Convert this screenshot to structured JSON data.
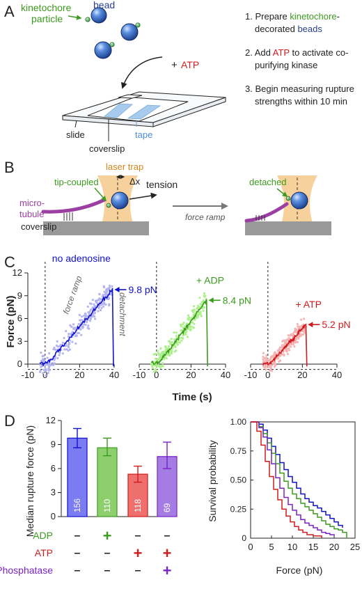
{
  "panels": {
    "a": "A",
    "b": "B",
    "c": "C",
    "d": "D"
  },
  "panel_a": {
    "label_kinetochore_line1": "kinetochore",
    "label_kinetochore_line2": "particle",
    "label_bead": "bead",
    "label_plus": "+",
    "label_atp": "ATP",
    "label_slide": "slide",
    "label_coverslip": "coverslip",
    "label_tape": "tape",
    "steps": [
      {
        "n": "1.",
        "parts": [
          "Prepare ",
          "kinetochore",
          "-"
        ],
        "line2": [
          "decorated ",
          "beads"
        ]
      },
      {
        "n": "2.",
        "parts": [
          "Add ",
          "ATP",
          " to activate co-"
        ],
        "line2": [
          "purifying kinase",
          ""
        ]
      },
      {
        "n": "3.",
        "parts": [
          "Begin measuring rupture",
          "",
          ""
        ],
        "line2": [
          "strengths within 10 min",
          ""
        ]
      }
    ]
  },
  "panel_b": {
    "laser_trap": "laser trap",
    "delta_x": "Δx",
    "tip_coupled": "tip-coupled",
    "tension": "tension",
    "micro": "micro-",
    "tubule": "tubule",
    "coverslip": "coverslip",
    "force_ramp": "force ramp",
    "detached": "detached"
  },
  "panel_c": {
    "ylabel": "Force (pN)",
    "xlabel": "Time (s)",
    "force_ramp": "force ramp",
    "detachment": "detachment",
    "traces": [
      {
        "title": "no adenosine",
        "peak_label": "9.8 pN",
        "peak": 9.8,
        "rupture_time": 39,
        "color": "#1010d0",
        "light": "#b4b4f0"
      },
      {
        "title": "+ ADP",
        "peak_label": "8.4 pN",
        "peak": 8.4,
        "rupture_time": 29,
        "color": "#3c9a1e",
        "light": "#aff08e"
      },
      {
        "title": "+ ATP",
        "peak_label": "5.2 pN",
        "peak": 5.2,
        "rupture_time": 22,
        "color": "#d01c1c",
        "light": "#f4b4b4"
      }
    ],
    "xticks": [
      "-10",
      "0",
      "20",
      "40"
    ],
    "xtick_vals": [
      -10,
      0,
      20,
      40
    ],
    "yticks": [
      "0",
      "3",
      "6",
      "9",
      "12"
    ],
    "ytick_vals": [
      0,
      3,
      6,
      9,
      12
    ]
  },
  "chart_data": [
    {
      "type": "bar",
      "ylabel": "Median rupture force (pN)",
      "ylim": [
        0,
        12
      ],
      "yticks": [
        "0",
        "3",
        "6",
        "9",
        "12"
      ],
      "ytick_vals": [
        0,
        3,
        6,
        9,
        12
      ],
      "categories": [
        "156",
        "110",
        "118",
        "69"
      ],
      "values": [
        9.8,
        8.6,
        5.3,
        7.5
      ],
      "error": [
        [
          8.6,
          11.0
        ],
        [
          7.6,
          9.8
        ],
        [
          4.3,
          6.3
        ],
        [
          6.0,
          9.3
        ]
      ],
      "fill": [
        "#7b7bf2",
        "#8ccf6c",
        "#ef6f6f",
        "#a57ce4"
      ],
      "edge": [
        "#1010d0",
        "#3c9a1e",
        "#d01c1c",
        "#7a22c4"
      ],
      "conditions": [
        {
          "name": "ADP",
          "color": "#3c9a1e",
          "signs": [
            "–",
            "+",
            "–",
            "–"
          ]
        },
        {
          "name": "ATP",
          "color": "#d01c1c",
          "signs": [
            "–",
            "–",
            "+",
            "+"
          ]
        },
        {
          "name": "λ-Phosphatase",
          "color": "#7a22c4",
          "signs": [
            "–",
            "–",
            "–",
            "+"
          ]
        }
      ]
    },
    {
      "type": "line",
      "xlabel": "Force (pN)",
      "ylabel": "Survival probability",
      "xlim": [
        0,
        25
      ],
      "ylim": [
        0,
        1
      ],
      "xticks": [
        "0",
        "5",
        "10",
        "15",
        "20",
        "25"
      ],
      "xtick_vals": [
        0,
        5,
        10,
        15,
        20,
        25
      ],
      "yticks": [
        "0",
        "0.25",
        "0.50",
        "0.75",
        "1.00"
      ],
      "ytick_vals": [
        0,
        0.25,
        0.5,
        0.75,
        1.0
      ],
      "series": [
        {
          "color": "#1010d0",
          "x": [
            0,
            2,
            3,
            4,
            5,
            6,
            7,
            8,
            9,
            10,
            11,
            12,
            13,
            14,
            15,
            16,
            17,
            18,
            19,
            20,
            21,
            22
          ],
          "y": [
            1.0,
            0.98,
            0.93,
            0.86,
            0.79,
            0.72,
            0.65,
            0.59,
            0.53,
            0.48,
            0.43,
            0.38,
            0.34,
            0.31,
            0.28,
            0.26,
            0.23,
            0.2,
            0.17,
            0.14,
            0.11,
            0.09
          ]
        },
        {
          "color": "#3c9a1e",
          "x": [
            0,
            2,
            3,
            4,
            5,
            6,
            7,
            8,
            9,
            10,
            11,
            12,
            13,
            14,
            15,
            16,
            17,
            18,
            19,
            20,
            21,
            22,
            23
          ],
          "y": [
            1.0,
            0.96,
            0.9,
            0.82,
            0.73,
            0.64,
            0.56,
            0.49,
            0.43,
            0.38,
            0.34,
            0.3,
            0.27,
            0.24,
            0.21,
            0.18,
            0.15,
            0.12,
            0.1,
            0.08,
            0.07,
            0.05,
            0.0
          ]
        },
        {
          "color": "#7a22c4",
          "x": [
            0,
            2,
            3,
            4,
            5,
            6,
            7,
            8,
            9,
            10,
            11,
            12,
            13,
            14,
            15,
            16,
            17,
            18,
            19,
            20
          ],
          "y": [
            1.0,
            0.95,
            0.87,
            0.76,
            0.64,
            0.52,
            0.43,
            0.35,
            0.29,
            0.24,
            0.2,
            0.16,
            0.13,
            0.11,
            0.09,
            0.07,
            0.05,
            0.04,
            0.03,
            0.02
          ]
        },
        {
          "color": "#d01c1c",
          "x": [
            0,
            1.5,
            2.5,
            3.5,
            4.5,
            5.5,
            6.5,
            7.5,
            8.5,
            9.5,
            10.5,
            11.5,
            12.5,
            13.5,
            15,
            17
          ],
          "y": [
            1.0,
            0.92,
            0.8,
            0.66,
            0.53,
            0.42,
            0.33,
            0.25,
            0.19,
            0.14,
            0.1,
            0.07,
            0.05,
            0.03,
            0.02,
            0.0
          ]
        }
      ]
    }
  ]
}
